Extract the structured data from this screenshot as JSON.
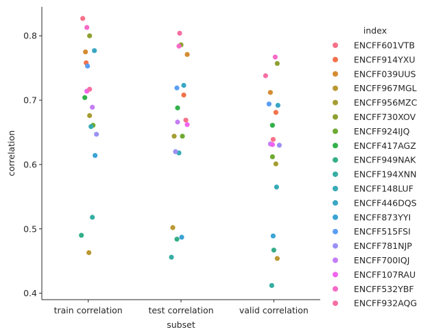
{
  "chart_data": {
    "type": "scatter",
    "style": "strip",
    "xlabel": "subset",
    "ylabel": "correlation",
    "categories": [
      "train correlation",
      "test correlation",
      "valid correlation"
    ],
    "ylim": [
      0.39,
      0.845
    ],
    "yticks": [
      0.4,
      0.5,
      0.6,
      0.7,
      0.8
    ],
    "ytick_labels": [
      "0.4",
      "0.5",
      "0.6",
      "0.7",
      "0.8"
    ],
    "grid": false,
    "legend": {
      "title": "index",
      "position": "right"
    },
    "series": [
      {
        "name": "ENCFF601VTB",
        "color": "#f77189",
        "values": [
          0.827,
          0.669,
          0.639
        ]
      },
      {
        "name": "ENCFF914YXU",
        "color": "#f2724c",
        "values": [
          0.758,
          0.708,
          0.681
        ]
      },
      {
        "name": "ENCFF039UUS",
        "color": "#d58c32",
        "values": [
          0.775,
          0.771,
          0.712
        ]
      },
      {
        "name": "ENCFF967MGL",
        "color": "#bb9832",
        "values": [
          0.463,
          0.502,
          0.454
        ]
      },
      {
        "name": "ENCFF956MZC",
        "color": "#a69d32",
        "values": [
          0.676,
          0.644,
          0.601
        ]
      },
      {
        "name": "ENCFF730XOV",
        "color": "#8ea032",
        "values": [
          0.8,
          0.786,
          0.757
        ]
      },
      {
        "name": "ENCFF924IJQ",
        "color": "#6daa32",
        "values": [
          0.661,
          0.644,
          0.612
        ]
      },
      {
        "name": "ENCFF417AGZ",
        "color": "#32b049",
        "values": [
          0.704,
          0.688,
          0.661
        ]
      },
      {
        "name": "ENCFF949NAK",
        "color": "#34ae89",
        "values": [
          0.49,
          0.484,
          0.467
        ]
      },
      {
        "name": "ENCFF194XNN",
        "color": "#36ada4",
        "values": [
          0.518,
          0.456,
          0.412
        ]
      },
      {
        "name": "ENCFF148LUF",
        "color": "#37abb5",
        "values": [
          0.659,
          0.618,
          0.565
        ]
      },
      {
        "name": "ENCFF446DQS",
        "color": "#39a7c4",
        "values": [
          0.777,
          0.723,
          0.692
        ]
      },
      {
        "name": "ENCFF873YYI",
        "color": "#3ba3d5",
        "values": [
          0.614,
          0.487,
          0.489
        ]
      },
      {
        "name": "ENCFF515FSI",
        "color": "#5a9ef3",
        "values": [
          0.753,
          0.719,
          0.694
        ]
      },
      {
        "name": "ENCFF781NJP",
        "color": "#9b90f4",
        "values": [
          0.647,
          0.62,
          0.63
        ]
      },
      {
        "name": "ENCFF700IQJ",
        "color": "#c47ef4",
        "values": [
          0.689,
          0.666,
          0.632
        ]
      },
      {
        "name": "ENCFF107RAU",
        "color": "#f263ee",
        "values": [
          0.714,
          0.662,
          0.631
        ]
      },
      {
        "name": "ENCFF532YBF",
        "color": "#f56ac6",
        "values": [
          0.813,
          0.784,
          0.767
        ]
      },
      {
        "name": "ENCFF932AQG",
        "color": "#f66fa4",
        "values": [
          0.717,
          0.804,
          0.738
        ]
      }
    ]
  }
}
